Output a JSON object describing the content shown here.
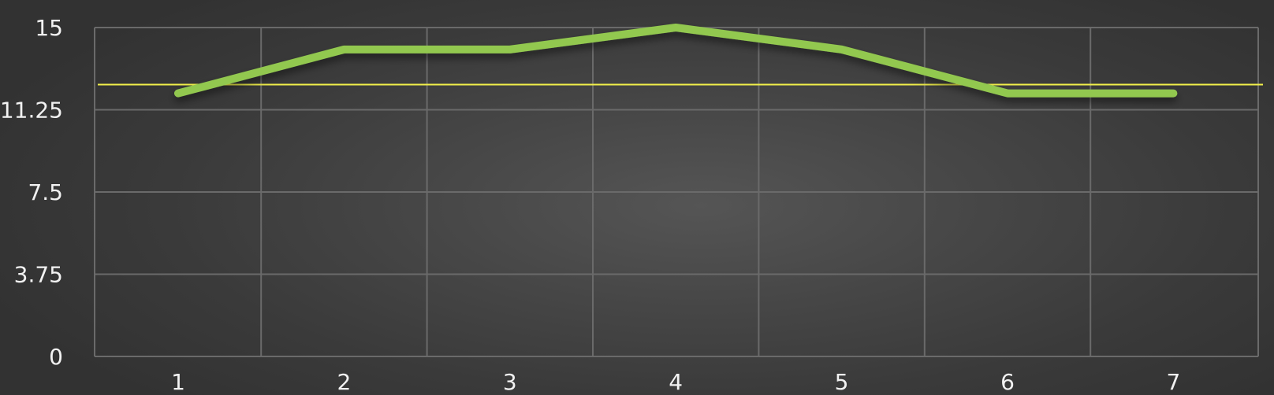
{
  "chart_data": {
    "type": "line",
    "title": "",
    "xlabel": "",
    "ylabel": "",
    "categories": [
      "1",
      "2",
      "3",
      "4",
      "5",
      "6",
      "7"
    ],
    "y_ticks": [
      "0",
      "3.75",
      "7.5",
      "11.25",
      "15"
    ],
    "ylim": [
      0,
      15
    ],
    "grid": true,
    "legend": "none",
    "series": [
      {
        "values": [
          12,
          14,
          14,
          15,
          14,
          12,
          12
        ],
        "color": "#92c84f"
      }
    ],
    "reference_line": {
      "value": 12.4,
      "color": "#f2f04a"
    },
    "colors": {
      "grid": "#6a6a6a",
      "text": "#f2f2f2"
    }
  }
}
